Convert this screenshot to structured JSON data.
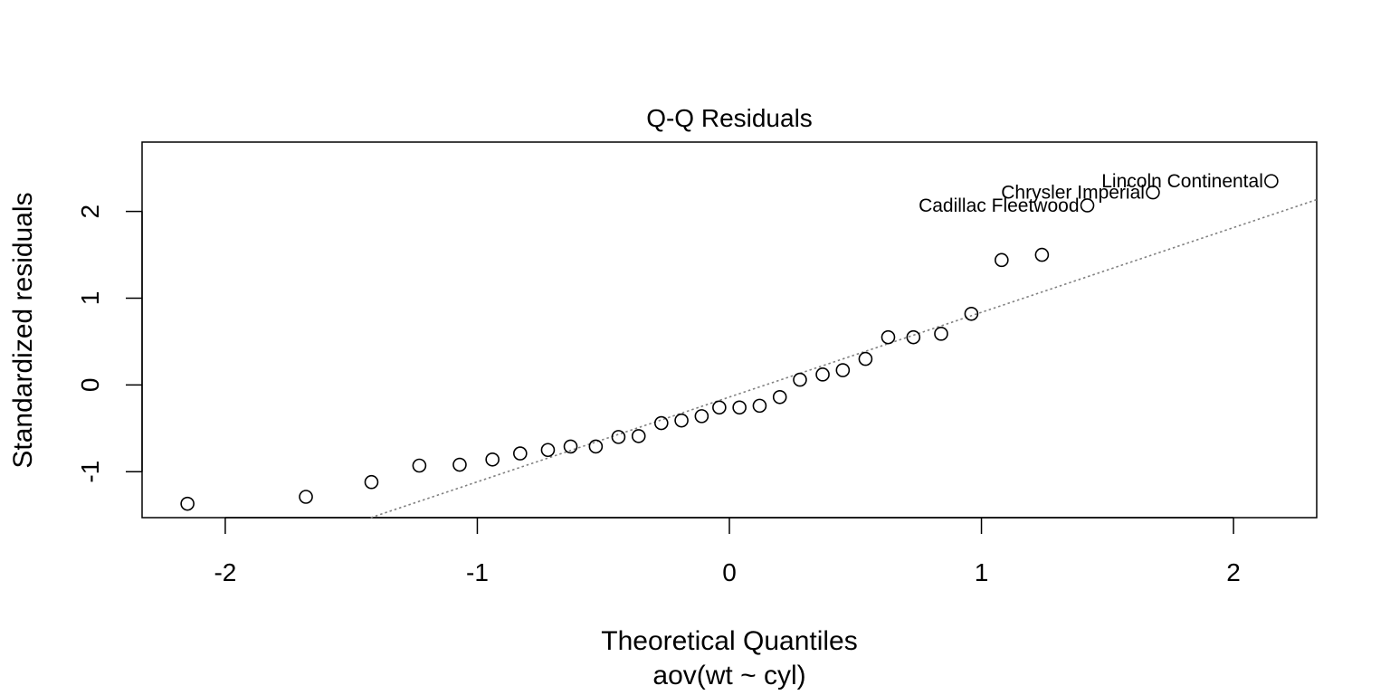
{
  "chart_data": {
    "type": "scatter",
    "title": "Q-Q Residuals",
    "xlabel": "Theoretical Quantiles",
    "subtitle": "aov(wt ~ cyl)",
    "ylabel": "Standardized residuals",
    "xlim": [
      -2.33,
      2.33
    ],
    "ylim": [
      -1.53,
      2.8
    ],
    "x_ticks": [
      -2,
      -1,
      0,
      1,
      2
    ],
    "x_tick_labels": [
      "-2",
      "-1",
      "0",
      "1",
      "2"
    ],
    "y_ticks": [
      -1,
      0,
      1,
      2
    ],
    "y_tick_labels": [
      "-1",
      "0",
      "1",
      "2"
    ],
    "grid": false,
    "reference_line": {
      "slope": 0.977,
      "intercept": -0.14,
      "style": "dotted",
      "color": "#808080"
    },
    "points": [
      {
        "x": -2.15,
        "y": -1.37
      },
      {
        "x": -1.68,
        "y": -1.29
      },
      {
        "x": -1.42,
        "y": -1.12
      },
      {
        "x": -1.23,
        "y": -0.93
      },
      {
        "x": -1.07,
        "y": -0.92
      },
      {
        "x": -0.94,
        "y": -0.86
      },
      {
        "x": -0.83,
        "y": -0.79
      },
      {
        "x": -0.72,
        "y": -0.75
      },
      {
        "x": -0.63,
        "y": -0.71
      },
      {
        "x": -0.53,
        "y": -0.71
      },
      {
        "x": -0.44,
        "y": -0.6
      },
      {
        "x": -0.36,
        "y": -0.59
      },
      {
        "x": -0.27,
        "y": -0.44
      },
      {
        "x": -0.19,
        "y": -0.41
      },
      {
        "x": -0.11,
        "y": -0.36
      },
      {
        "x": -0.04,
        "y": -0.26
      },
      {
        "x": 0.04,
        "y": -0.26
      },
      {
        "x": 0.12,
        "y": -0.24
      },
      {
        "x": 0.2,
        "y": -0.14
      },
      {
        "x": 0.28,
        "y": 0.06
      },
      {
        "x": 0.37,
        "y": 0.12
      },
      {
        "x": 0.45,
        "y": 0.17
      },
      {
        "x": 0.54,
        "y": 0.3
      },
      {
        "x": 0.63,
        "y": 0.55
      },
      {
        "x": 0.73,
        "y": 0.55
      },
      {
        "x": 0.84,
        "y": 0.59
      },
      {
        "x": 0.96,
        "y": 0.82
      },
      {
        "x": 1.08,
        "y": 1.44
      },
      {
        "x": 1.24,
        "y": 1.5
      },
      {
        "x": 1.42,
        "y": 2.07,
        "label": "Cadillac Fleetwood"
      },
      {
        "x": 1.68,
        "y": 2.22,
        "label": "Chrysler Imperial"
      },
      {
        "x": 2.15,
        "y": 2.35,
        "label": "Lincoln Continental"
      }
    ]
  }
}
